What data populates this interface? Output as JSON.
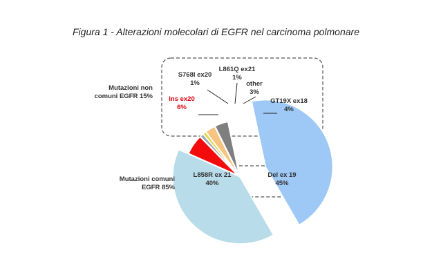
{
  "title": "Figura 1 - Alterazioni molecolari di EGFR nel carcinoma polmonare",
  "chart_data": {
    "type": "pie",
    "slices": [
      {
        "name": "Del ex 19",
        "label": "Del ex 19",
        "value_label": "45%",
        "value": 45,
        "color": "#9ec8f5",
        "exploded": true
      },
      {
        "name": "L858R ex 21",
        "label": "L858R ex 21",
        "value_label": "40%",
        "value": 40,
        "color": "#b8dcea",
        "exploded": false
      },
      {
        "name": "Ins ex20",
        "label": "Ins ex20",
        "value_label": "6%",
        "value": 6,
        "color": "#f40c0c",
        "exploded": true
      },
      {
        "name": "S768I ex20",
        "label": "S768I ex20",
        "value_label": "1%",
        "value": 1,
        "color": "#9aa8b4",
        "exploded": true
      },
      {
        "name": "L861Q ex21",
        "label": "L861Q ex21",
        "value_label": "1%",
        "value": 1,
        "color": "#e6d84a",
        "exploded": true
      },
      {
        "name": "other",
        "label": "other",
        "value_label": "3%",
        "value": 3,
        "color": "#f6c480",
        "exploded": true
      },
      {
        "name": "GT19X ex18",
        "label": "GT19X ex18",
        "value_label": "4%",
        "value": 4,
        "color": "#7f7f7f",
        "exploded": true
      }
    ],
    "groups": [
      {
        "line1": "Mutazioni non",
        "line2": "comuni EGFR 15%"
      },
      {
        "line1": "Mutazioni comuni",
        "line2": "EGFR 85%"
      }
    ]
  }
}
